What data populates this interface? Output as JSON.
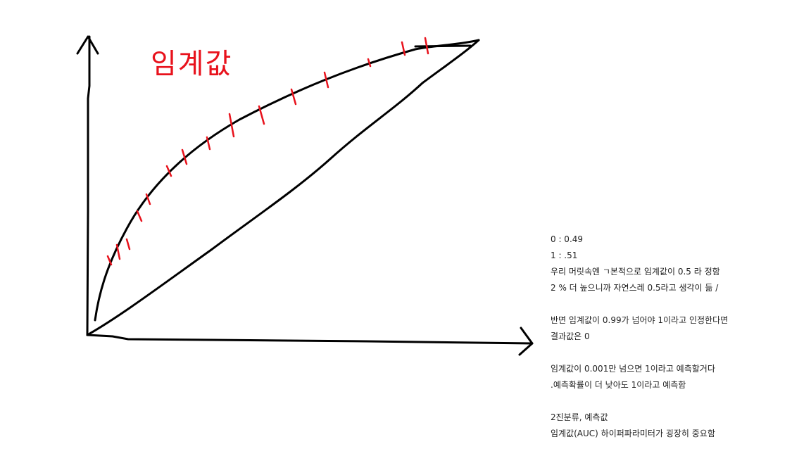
{
  "diagram": {
    "handwritten_title": "임계값",
    "colors": {
      "ink": "#000000",
      "tick_marks": "#e8121c",
      "text": "#222222"
    }
  },
  "notes": [
    "0 : 0.49",
    "1 : .51",
    "우리 머릿속엔 ㄱ본적으로 임계값이 0.5 라 정함",
    "2 % 더 높으니까 자연스레 0.5라고 생각이 듦 /",
    "",
    "반면 임계값이 0.99가 넘어야 1이라고 인정한다면",
    "결과값은 0",
    "",
    "임계값이 0.001만 넘으면 1이라고 예측할거다",
    ".예측확률이 더 낮아도 1이라고 예측함",
    "",
    "2진분류, 예측값",
    "임계값(AUC) 하이퍼파라미터가 굉장히 중요함"
  ]
}
